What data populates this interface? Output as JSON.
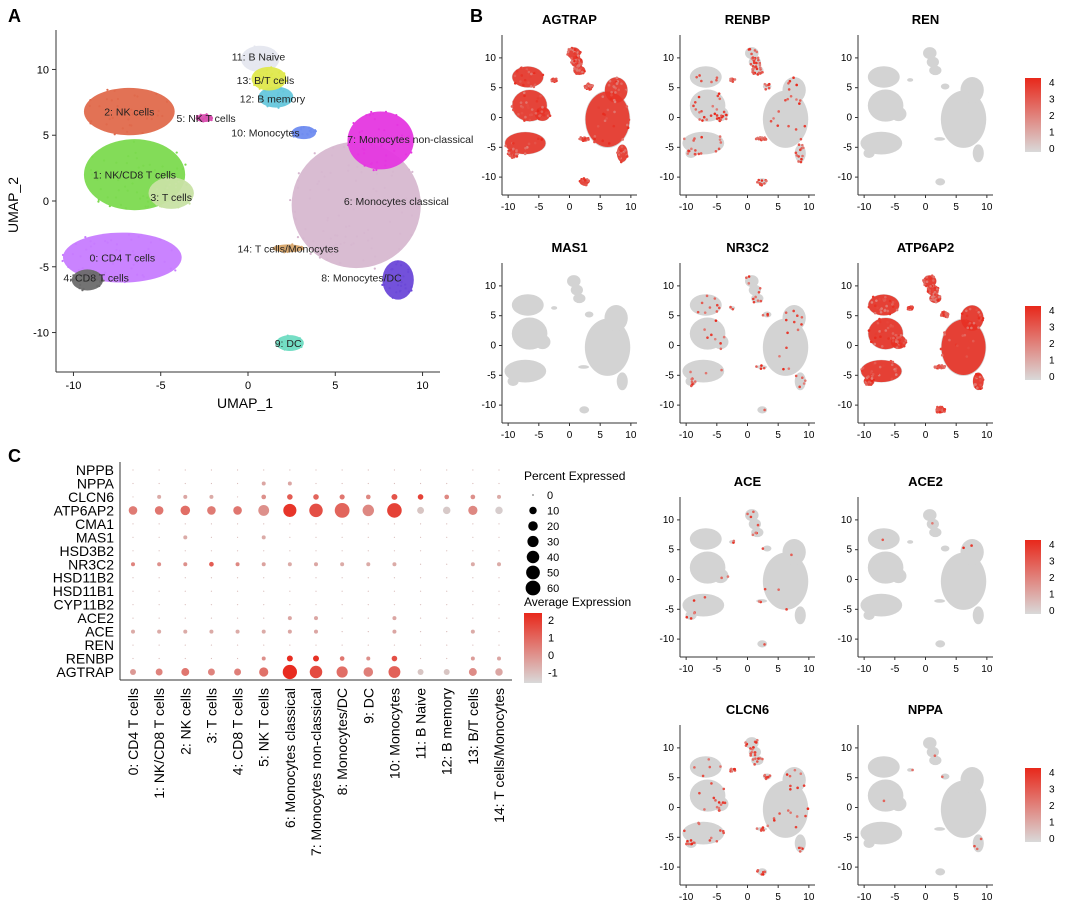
{
  "panels": {
    "a": "A",
    "b": "B",
    "c": "C"
  },
  "colors": {
    "grey": "#d3d3d3",
    "expr_low": "#d9d9d9",
    "expr_high": "#e8281b",
    "clusters": [
      "#c77cff",
      "#7cda4f",
      "#e06a4c",
      "#c8e2a4",
      "#6b6b6b",
      "#d94fb0",
      "#d7b8d0",
      "#e537e0",
      "#6b48d8",
      "#6fdcc2",
      "#6f8cf0",
      "#e5e7ef",
      "#66c7dc",
      "#dfe84c",
      "#d8a66b"
    ]
  },
  "chart_data": [
    {
      "type": "scatter",
      "id": "umap_clusters",
      "title": "",
      "xlabel": "UMAP_1",
      "ylabel": "UMAP_2",
      "xlim": [
        -11,
        11
      ],
      "ylim": [
        -13,
        13
      ],
      "xticks": [
        "-10",
        "-5",
        "0",
        "5",
        "10"
      ],
      "yticks": [
        "-10",
        "-5",
        "0",
        "5",
        "10"
      ],
      "clusters": [
        {
          "label": "0: CD4 T cells",
          "x": -7.2,
          "y": -4.3
        },
        {
          "label": "1: NK/CD8 T cells",
          "x": -6.5,
          "y": 2.0
        },
        {
          "label": "2: NK cells",
          "x": -6.8,
          "y": 6.8
        },
        {
          "label": "3: T cells",
          "x": -4.4,
          "y": 0.3
        },
        {
          "label": "4: CD8 T cells",
          "x": -8.7,
          "y": -5.8
        },
        {
          "label": "5: NK T cells",
          "x": -2.4,
          "y": 6.3
        },
        {
          "label": "6: Monocytes classical",
          "x": 6.2,
          "y": 0.0
        },
        {
          "label": "7: Monocytes non-classical",
          "x": 7.7,
          "y": 4.7
        },
        {
          "label": "8: Monocytes/DC",
          "x": 8.5,
          "y": -5.8
        },
        {
          "label": "9: DC",
          "x": 2.3,
          "y": -10.8
        },
        {
          "label": "10: Monocytes",
          "x": 3.0,
          "y": 5.2
        },
        {
          "label": "11: B Naive",
          "x": 0.6,
          "y": 11.0
        },
        {
          "label": "12: B memory",
          "x": 1.4,
          "y": 7.8
        },
        {
          "label": "13: B/T cells",
          "x": 1.0,
          "y": 9.2
        },
        {
          "label": "14: T cells/Monocytes",
          "x": 2.3,
          "y": -3.6
        }
      ]
    },
    {
      "type": "scatter",
      "id": "feature_plots",
      "xticks": [
        "-10",
        "-5",
        "0",
        "5",
        "10"
      ],
      "yticks": [
        "-10",
        "-5",
        "0",
        "5",
        "10"
      ],
      "legend_ticks": [
        "4",
        "3",
        "2",
        "1",
        "0"
      ],
      "legend_range": [
        0,
        4
      ],
      "genes": [
        {
          "name": "AGTRAP",
          "level": 0.85,
          "legend": false
        },
        {
          "name": "RENBP",
          "level": 0.45,
          "legend": false
        },
        {
          "name": "REN",
          "level": 0.0,
          "legend": true
        },
        {
          "name": "MAS1",
          "level": 0.0,
          "legend": false
        },
        {
          "name": "NR3C2",
          "level": 0.18,
          "legend": false
        },
        {
          "name": "ATP6AP2",
          "level": 0.9,
          "legend": true
        },
        {
          "name": "ACE",
          "level": 0.07,
          "legend": false
        },
        {
          "name": "ACE2",
          "level": 0.01,
          "legend": true
        },
        {
          "name": "CLCN6",
          "level": 0.3,
          "legend": false
        },
        {
          "name": "NPPA",
          "level": 0.02,
          "legend": true
        }
      ]
    },
    {
      "type": "dotplot",
      "id": "dotplot",
      "genes": [
        "NPPB",
        "NPPA",
        "CLCN6",
        "ATP6AP2",
        "CMA1",
        "MAS1",
        "HSD3B2",
        "NR3C2",
        "HSD11B2",
        "HSD11B1",
        "CYP11B2",
        "ACE2",
        "ACE",
        "REN",
        "RENBP",
        "AGTRAP"
      ],
      "clusters": [
        "0: CD4 T cells",
        "1: NK/CD8 T cells",
        "2: NK cells",
        "3: T cells",
        "4: CD8 T cells",
        "5: NK T cells",
        "6: Monocytes classical",
        "7: Monocytes non-classical",
        "8: Monocytes/DC",
        "9: DC",
        "10: Monocytes",
        "11: B Naive",
        "12: B memory",
        "13: B/T cells",
        "14: T cells/Monocytes"
      ],
      "rows": [
        {
          "gene": "NPPB",
          "pct": [
            0,
            0,
            0,
            0,
            0,
            0,
            0,
            0,
            0,
            0,
            0,
            0,
            0,
            0,
            0
          ],
          "avg": [
            -1,
            -1,
            -1,
            -1,
            -1,
            -1,
            -1,
            -1,
            -1,
            -1,
            -1,
            -1,
            -1,
            -1,
            -1
          ]
        },
        {
          "gene": "NPPA",
          "pct": [
            0,
            0,
            0,
            0,
            0,
            1,
            1,
            0,
            0,
            0,
            0,
            0,
            0,
            0,
            0
          ],
          "avg": [
            -1,
            -1,
            -1,
            -1,
            -1,
            -0.5,
            -0.5,
            -1,
            -1,
            -1,
            -1,
            -1,
            -1,
            -1,
            -1
          ]
        },
        {
          "gene": "CLCN6",
          "pct": [
            0,
            1,
            1,
            1,
            0,
            2,
            4,
            4,
            3,
            2,
            5,
            4,
            2,
            2,
            1
          ],
          "avg": [
            -1,
            -0.6,
            -0.5,
            -0.6,
            -1,
            0,
            1.2,
            1,
            0.6,
            0.2,
            1.4,
            1.8,
            0.2,
            0,
            -0.6
          ]
        },
        {
          "gene": "ATP6AP2",
          "pct": [
            15,
            15,
            20,
            15,
            15,
            28,
            45,
            48,
            60,
            32,
            58,
            8,
            10,
            18,
            10
          ],
          "avg": [
            0.5,
            0.6,
            0.8,
            0.5,
            0.6,
            0,
            2.1,
            1.5,
            1,
            0.2,
            1.8,
            -1.2,
            -1.3,
            0.2,
            -1.4
          ]
        },
        {
          "gene": "CMA1",
          "pct": [
            0,
            0,
            0,
            0,
            0,
            0,
            0,
            0,
            0,
            0,
            0,
            0,
            0,
            0,
            0
          ],
          "avg": [
            -1,
            -1,
            -1,
            -1,
            -1,
            -1,
            -1,
            -1,
            -1,
            -1,
            -1,
            -1,
            -1,
            -1,
            -1
          ]
        },
        {
          "gene": "MAS1",
          "pct": [
            0,
            0,
            1,
            0,
            0,
            1,
            0,
            0,
            0,
            0,
            0,
            0,
            0,
            0,
            0
          ],
          "avg": [
            -1,
            -1,
            -0.6,
            -1,
            -1,
            -0.6,
            -1,
            -1,
            -1,
            -1,
            -1,
            -1,
            -1,
            -1,
            -1
          ]
        },
        {
          "gene": "HSD3B2",
          "pct": [
            0,
            0,
            0,
            0,
            0,
            0,
            0,
            0,
            0,
            0,
            0,
            0,
            0,
            0,
            0
          ],
          "avg": [
            -1,
            -1,
            -1,
            -1,
            -1,
            -1,
            -1,
            -1,
            -1,
            -1,
            -1,
            -1,
            -1,
            -1,
            -1
          ]
        },
        {
          "gene": "NR3C2",
          "pct": [
            1,
            1,
            1,
            2,
            1,
            1,
            1,
            1,
            1,
            1,
            1,
            0,
            0,
            1,
            1
          ],
          "avg": [
            0.3,
            0,
            0,
            1.2,
            0.2,
            -0.4,
            -0.6,
            -0.5,
            -0.6,
            -0.6,
            -0.6,
            -1,
            -1,
            -0.6,
            -0.6
          ]
        },
        {
          "gene": "HSD11B2",
          "pct": [
            0,
            0,
            0,
            0,
            0,
            0,
            0,
            0,
            0,
            0,
            0,
            0,
            0,
            0,
            0
          ],
          "avg": [
            -1,
            -1,
            -1,
            -1,
            -1,
            -1,
            -1,
            -1,
            -1,
            -1,
            -1,
            -1,
            -1,
            -1,
            -1
          ]
        },
        {
          "gene": "HSD11B1",
          "pct": [
            0,
            0,
            0,
            0,
            0,
            0,
            0,
            0,
            0,
            0,
            0,
            0,
            0,
            0,
            0
          ],
          "avg": [
            -1,
            -1,
            -1,
            -1,
            -1,
            -1,
            -1,
            -1,
            -1,
            -1,
            -1,
            -1,
            -1,
            -1,
            -1
          ]
        },
        {
          "gene": "CYP11B2",
          "pct": [
            0,
            0,
            0,
            0,
            0,
            0,
            0,
            0,
            0,
            0,
            0,
            0,
            0,
            0,
            0
          ],
          "avg": [
            -1,
            -1,
            -1,
            -1,
            -1,
            -1,
            -1,
            -1,
            -1,
            -1,
            -1,
            -1,
            -1,
            -1,
            -1
          ]
        },
        {
          "gene": "ACE2",
          "pct": [
            0,
            0,
            0,
            0,
            0,
            0,
            1,
            1,
            0,
            0,
            1,
            0,
            0,
            0,
            0
          ],
          "avg": [
            -1,
            -1,
            -1,
            -1,
            -1,
            -1,
            -0.5,
            -0.5,
            -1,
            -1,
            -0.5,
            -1,
            -1,
            -1,
            -1
          ]
        },
        {
          "gene": "ACE",
          "pct": [
            1,
            1,
            1,
            1,
            1,
            1,
            1,
            1,
            0,
            0,
            1,
            0,
            0,
            1,
            0
          ],
          "avg": [
            -0.6,
            -0.6,
            -0.6,
            -0.6,
            -0.6,
            -0.6,
            -0.5,
            -0.5,
            -1,
            -1,
            -0.5,
            -1,
            -1,
            -0.6,
            -1
          ]
        },
        {
          "gene": "REN",
          "pct": [
            0,
            0,
            0,
            0,
            0,
            0,
            0,
            0,
            0,
            0,
            0,
            0,
            0,
            0,
            0
          ],
          "avg": [
            -1,
            -1,
            -1,
            -1,
            -1,
            -1,
            -1,
            -1,
            -1,
            -1,
            -1,
            -1,
            -1,
            -1,
            -1
          ]
        },
        {
          "gene": "RENBP",
          "pct": [
            0,
            0,
            0,
            0,
            0,
            1,
            5,
            5,
            2,
            1,
            4,
            0,
            0,
            1,
            1
          ],
          "avg": [
            -1,
            -1,
            -1,
            -1,
            -1,
            0,
            2.3,
            2.2,
            0.6,
            0,
            1.5,
            -1,
            -1,
            -0.3,
            -0.5
          ]
        },
        {
          "gene": "AGTRAP",
          "pct": [
            5,
            8,
            12,
            8,
            8,
            18,
            55,
            40,
            30,
            20,
            35,
            5,
            5,
            12,
            10
          ],
          "avg": [
            -0.2,
            0.3,
            0.6,
            0.3,
            0.4,
            0.7,
            2.3,
            1.6,
            0.8,
            0.4,
            1.1,
            -1.2,
            -1.2,
            0.1,
            -0.5
          ]
        }
      ],
      "size_legend": {
        "title": "Percent Expressed",
        "values": [
          "0",
          "10",
          "20",
          "30",
          "40",
          "50",
          "60"
        ]
      },
      "color_legend": {
        "title": "Average Expression",
        "ticks": [
          "2",
          "1",
          "0",
          "-1"
        ],
        "range": [
          -1.6,
          2.4
        ]
      }
    }
  ]
}
